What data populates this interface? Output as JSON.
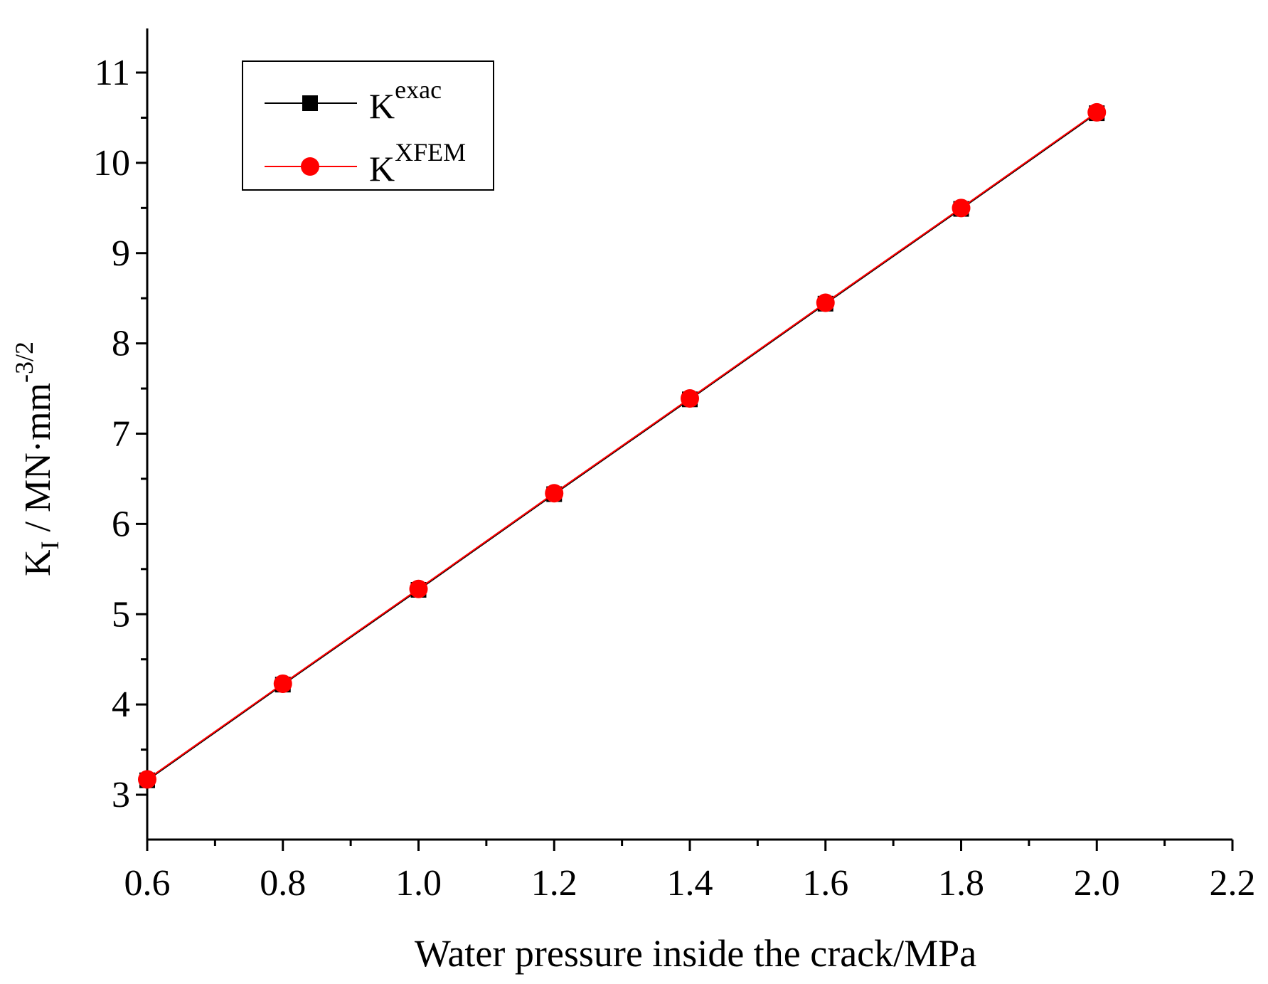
{
  "chart_data": {
    "type": "line",
    "xlabel": "Water pressure inside the crack/MPa",
    "ylabel": {
      "main": "K",
      "subscript": "I",
      "unit": " / MN·mm",
      "exponent": "-3/2"
    },
    "xlim": [
      0.6,
      2.2
    ],
    "ylim": [
      2.5,
      11.5
    ],
    "x_ticks": [
      "0.6",
      "0.8",
      "1.0",
      "1.2",
      "1.4",
      "1.6",
      "1.8",
      "2.0",
      "2.2"
    ],
    "y_ticks": [
      "3",
      "4",
      "5",
      "6",
      "7",
      "8",
      "9",
      "10",
      "11"
    ],
    "legend_position": "top-left",
    "series": [
      {
        "name": "K",
        "name_superscript": "exac",
        "color": "#000000",
        "marker": "square",
        "x": [
          0.6,
          0.8,
          1.0,
          1.2,
          1.4,
          1.6,
          1.8,
          2.0
        ],
        "y": [
          3.16,
          4.22,
          5.27,
          6.33,
          7.38,
          8.44,
          9.49,
          10.55
        ]
      },
      {
        "name": "K",
        "name_superscript": "XFEM",
        "color": "#ff0000",
        "marker": "circle",
        "x": [
          0.6,
          0.8,
          1.0,
          1.2,
          1.4,
          1.6,
          1.8,
          2.0
        ],
        "y": [
          3.17,
          4.23,
          5.28,
          6.34,
          7.39,
          8.45,
          9.5,
          10.56
        ]
      }
    ]
  }
}
